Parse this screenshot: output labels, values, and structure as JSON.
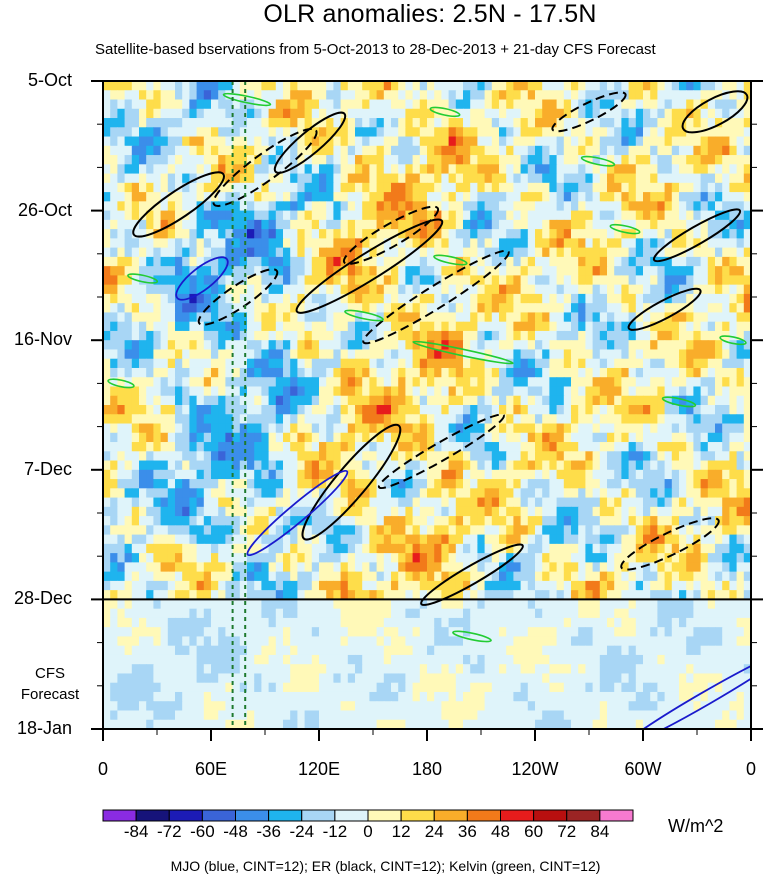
{
  "chart_data": {
    "type": "heatmap",
    "title": "OLR anomalies: 2.5N - 17.5N",
    "subtitle": "Satellite-based bservations from 5-Oct-2013 to 28-Dec-2013 + 21-day CFS Forecast",
    "units": "W/m^2",
    "caption": "MJO (blue, CINT=12); ER (black, CINT=12); Kelvin (green, CINT=12)",
    "x_ticks": [
      "0",
      "60E",
      "120E",
      "180",
      "120W",
      "60W",
      "0"
    ],
    "x_tick_degrees": [
      0,
      60,
      120,
      180,
      240,
      300,
      360
    ],
    "y_ticks": [
      "5-Oct",
      "26-Oct",
      "16-Nov",
      "7-Dec",
      "28-Dec",
      "18-Jan"
    ],
    "y_tick_days": [
      0,
      21,
      42,
      63,
      84,
      105
    ],
    "forecast_start_day": 84,
    "forecast_label": [
      "CFS",
      "Forecast"
    ],
    "xlim": [
      0,
      360
    ],
    "ylim_days": [
      0,
      105
    ],
    "colorbar": {
      "levels": [
        -84,
        -72,
        -60,
        -48,
        -36,
        -24,
        -12,
        0,
        12,
        24,
        36,
        48,
        60,
        72,
        84
      ],
      "colors": [
        "#8a2be2",
        "#16137a",
        "#1c1bb6",
        "#3a64d8",
        "#3b8eea",
        "#1fb4ee",
        "#a8d6f5",
        "#dff4fa",
        "#fff9b8",
        "#fedd4a",
        "#f9ad2a",
        "#f27a1a",
        "#e71c1c",
        "#b80f0f",
        "#9b2424",
        "#f77ad0"
      ]
    },
    "vertical_lines_deg": [
      72,
      79
    ],
    "er_contours_solid": [
      [
        42,
        20,
        60,
        6,
        4,
        34
      ],
      [
        115,
        10,
        50,
        5,
        4,
        40
      ],
      [
        148,
        30,
        95,
        6,
        3,
        32
      ],
      [
        138,
        65,
        82,
        7,
        4,
        50
      ],
      [
        205,
        80,
        65,
        4,
        3,
        30
      ],
      [
        330,
        25,
        55,
        3,
        4,
        30
      ],
      [
        312,
        37,
        45,
        4,
        3,
        28
      ],
      [
        340,
        5,
        40,
        6,
        3,
        28
      ]
    ],
    "er_contours_dashed": [
      [
        90,
        14,
        70,
        6,
        3,
        36
      ],
      [
        75,
        35,
        52,
        5,
        3,
        34
      ],
      [
        185,
        35,
        95,
        5,
        3,
        32
      ],
      [
        188,
        60,
        80,
        4,
        3,
        30
      ],
      [
        160,
        25,
        60,
        5,
        3,
        30
      ],
      [
        315,
        75,
        60,
        5,
        3,
        26
      ],
      [
        270,
        5,
        45,
        4,
        3,
        26
      ]
    ],
    "mjo_contours": [
      [
        55,
        32,
        35,
        5,
        3,
        38
      ],
      [
        108,
        70,
        72,
        4,
        2,
        40
      ],
      [
        335,
        100,
        105,
        3,
        2,
        30
      ]
    ],
    "kelvin_contours": [
      [
        22,
        32,
        10,
        2,
        1,
        15
      ],
      [
        80,
        3,
        20,
        1,
        1,
        10
      ],
      [
        190,
        5,
        10,
        1,
        1,
        10
      ],
      [
        275,
        13,
        12,
        1,
        1,
        8
      ],
      [
        193,
        29,
        12,
        1,
        1,
        10
      ],
      [
        290,
        24,
        10,
        1,
        1,
        10
      ],
      [
        145,
        38,
        15,
        1,
        1,
        12
      ],
      [
        200,
        44,
        50,
        2,
        2,
        12
      ],
      [
        320,
        52,
        12,
        1,
        1,
        10
      ],
      [
        205,
        90,
        15,
        1,
        2,
        12
      ],
      [
        10,
        49,
        8,
        1,
        1,
        10
      ],
      [
        350,
        42,
        8,
        1,
        1,
        10
      ]
    ]
  }
}
